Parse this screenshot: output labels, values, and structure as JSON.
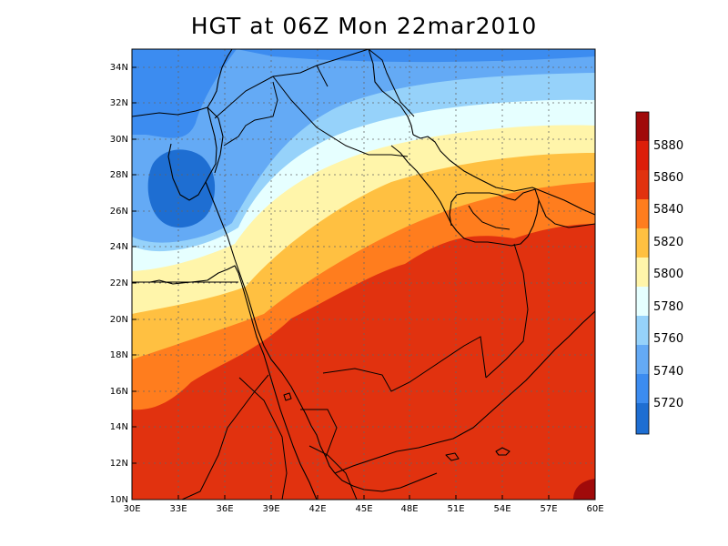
{
  "title": "HGT at 06Z Mon 22mar2010",
  "map": {
    "variable": "HGT",
    "lon_range": [
      30,
      60
    ],
    "lat_range": [
      10,
      35
    ],
    "x_ticks": [
      "30E",
      "33E",
      "36E",
      "39E",
      "42E",
      "45E",
      "48E",
      "51E",
      "54E",
      "57E",
      "60E"
    ],
    "y_ticks": [
      "10N",
      "12N",
      "14N",
      "16N",
      "18N",
      "20N",
      "22N",
      "24N",
      "26N",
      "28N",
      "30N",
      "32N",
      "34N"
    ],
    "grid": "dashed"
  },
  "colorbar": {
    "labels": [
      "5720",
      "5740",
      "5760",
      "5780",
      "5800",
      "5820",
      "5840",
      "5860",
      "5880"
    ],
    "colors": [
      "#1e6ed2",
      "#3c8cf0",
      "#64aaf5",
      "#96d2fa",
      "#e6ffff",
      "#fff5aa",
      "#ffc041",
      "#ff7d1e",
      "#e1320f",
      "#dc1e0a",
      "#a00a0a"
    ]
  },
  "bands": {
    "c5720": "#1e6ed2",
    "c5740": "#3c8cf0",
    "c5760": "#64aaf5",
    "c5780": "#96d2fa",
    "c5800": "#e6ffff",
    "c5820": "#fff5aa",
    "c5840": "#ffc041",
    "c5860": "#ff7d1e",
    "c5880": "#e1320f",
    "c5900": "#a00a0a"
  }
}
